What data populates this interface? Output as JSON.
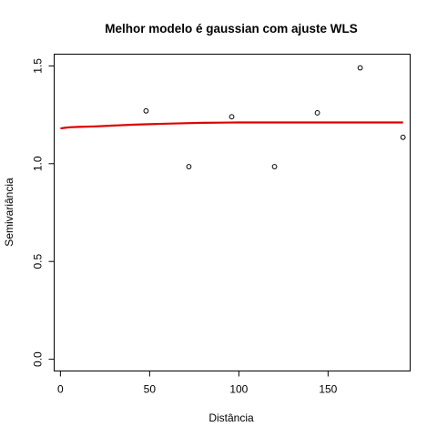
{
  "chart_data": {
    "type": "scatter",
    "title": "Melhor modelo é gaussian com ajuste  WLS",
    "xlabel": "Distância",
    "ylabel": "Semivariância",
    "xlim": [
      -3.5,
      196
    ],
    "ylim": [
      -0.06,
      1.56
    ],
    "x_ticks": [
      0,
      50,
      100,
      150
    ],
    "y_ticks": [
      0.0,
      0.5,
      1.0,
      1.5
    ],
    "x_tick_labels": [
      "0",
      "50",
      "100",
      "150"
    ],
    "y_tick_labels": [
      "0.0",
      "0.5",
      "1.0",
      "1.5"
    ],
    "grid": false,
    "series": [
      {
        "kind": "points",
        "marker": "open-circle",
        "color": "#000000",
        "x": [
          48,
          72,
          96,
          120,
          144,
          168,
          192
        ],
        "y": [
          1.27,
          0.985,
          1.24,
          0.985,
          1.26,
          1.49,
          1.135
        ]
      },
      {
        "kind": "line",
        "color": "#dd0000",
        "x": [
          0,
          2,
          5,
          10,
          20,
          30,
          40,
          50,
          60,
          70,
          80,
          90,
          100,
          120,
          140,
          160,
          180,
          192
        ],
        "y": [
          1.18,
          1.183,
          1.186,
          1.188,
          1.191,
          1.195,
          1.199,
          1.202,
          1.205,
          1.207,
          1.209,
          1.21,
          1.211,
          1.211,
          1.211,
          1.211,
          1.211,
          1.211
        ]
      }
    ]
  }
}
